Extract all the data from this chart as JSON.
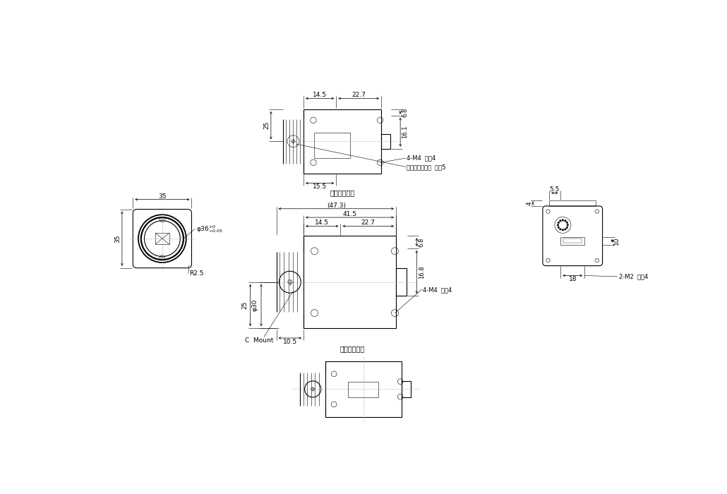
{
  "bg": "#ffffff",
  "lc": "#000000",
  "gc": "#aaaaaa",
  "lw": 0.8,
  "tw": 0.4,
  "fs": 6.5,
  "labels": {
    "top_label": "対面同一形状",
    "mid_label": "対面同一形状",
    "4M4_d4": "4-M4  深し4",
    "tripod": "カメラ三脲ネジ  深し5",
    "C_mount": "C  Mount",
    "R25": "R2.5",
    "phi36": "φ36",
    "phi30": "φ30",
    "phi36_tol": "φ36$^{+0}_{-0.05}$",
    "2M2_d4": "2-M2  深し4"
  },
  "dims": {
    "14_5": "14.5",
    "22_7": "22.7",
    "25": "25",
    "15_5": "15.5",
    "6_8": "6.8",
    "16_1": "16.1",
    "47_3": "(47.3)",
    "41_5": "41.5",
    "10_5": "10.5",
    "16_8": "16.8",
    "35": "35",
    "5_5": "5.5",
    "4": "4",
    "10": "10",
    "18": "18"
  }
}
